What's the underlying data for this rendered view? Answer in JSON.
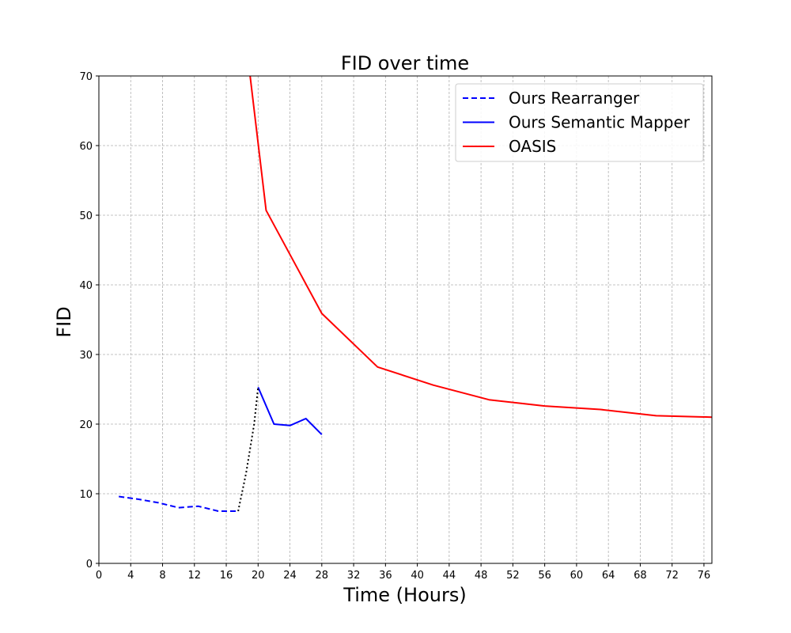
{
  "chart_data": {
    "type": "line",
    "title": "FID over time",
    "xlabel": "Time (Hours)",
    "ylabel": "FID",
    "xlim": [
      0,
      77
    ],
    "ylim": [
      0,
      70
    ],
    "xticks": [
      0,
      4,
      8,
      12,
      16,
      20,
      24,
      28,
      32,
      36,
      40,
      44,
      48,
      52,
      56,
      60,
      64,
      68,
      72,
      76
    ],
    "yticks": [
      0,
      10,
      20,
      30,
      40,
      50,
      60,
      70
    ],
    "grid": true,
    "legend_position": "top-right",
    "series": [
      {
        "name": "Ours Rearranger",
        "color": "#0000ff",
        "style": "dashed",
        "x": [
          2.5,
          5,
          7.5,
          10,
          12.5,
          15,
          17.5
        ],
        "y": [
          9.6,
          9.2,
          8.7,
          8.0,
          8.2,
          7.5,
          7.5
        ]
      },
      {
        "name": "Ours Semantic Mapper",
        "color": "#0000ff",
        "style": "solid",
        "x": [
          20,
          22,
          24,
          26,
          28
        ],
        "y": [
          25.3,
          20.0,
          19.8,
          20.8,
          18.5
        ]
      },
      {
        "name": "OASIS",
        "color": "#ff0000",
        "style": "solid",
        "x": [
          19,
          21,
          28,
          35,
          42,
          49,
          56,
          63,
          70,
          77
        ],
        "y": [
          70,
          50.7,
          35.9,
          28.2,
          25.6,
          23.5,
          22.6,
          22.1,
          21.2,
          21.0
        ]
      },
      {
        "color": "#000000",
        "style": "dotted",
        "x": [
          17.5,
          18.5,
          19.5,
          20
        ],
        "y": [
          7.5,
          13,
          20,
          25.3
        ]
      }
    ]
  }
}
